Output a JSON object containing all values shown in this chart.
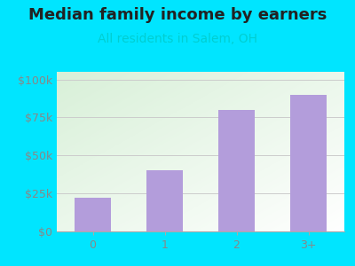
{
  "title": "Median family income by earners",
  "subtitle": "All residents in Salem, OH",
  "categories": [
    "0",
    "1",
    "2",
    "3+"
  ],
  "values": [
    22000,
    40000,
    80000,
    90000
  ],
  "bar_color": "#b39ddb",
  "title_fontsize": 13,
  "subtitle_fontsize": 10,
  "subtitle_color": "#00ced1",
  "title_color": "#222222",
  "background_color": "#00e5ff",
  "ylim": [
    0,
    105000
  ],
  "yticks": [
    0,
    25000,
    50000,
    75000,
    100000
  ],
  "ytick_labels": [
    "$0",
    "$25k",
    "$50k",
    "$75k",
    "$100k"
  ],
  "tick_color": "#888888",
  "grid_color": "#cccccc",
  "bar_width": 0.5
}
